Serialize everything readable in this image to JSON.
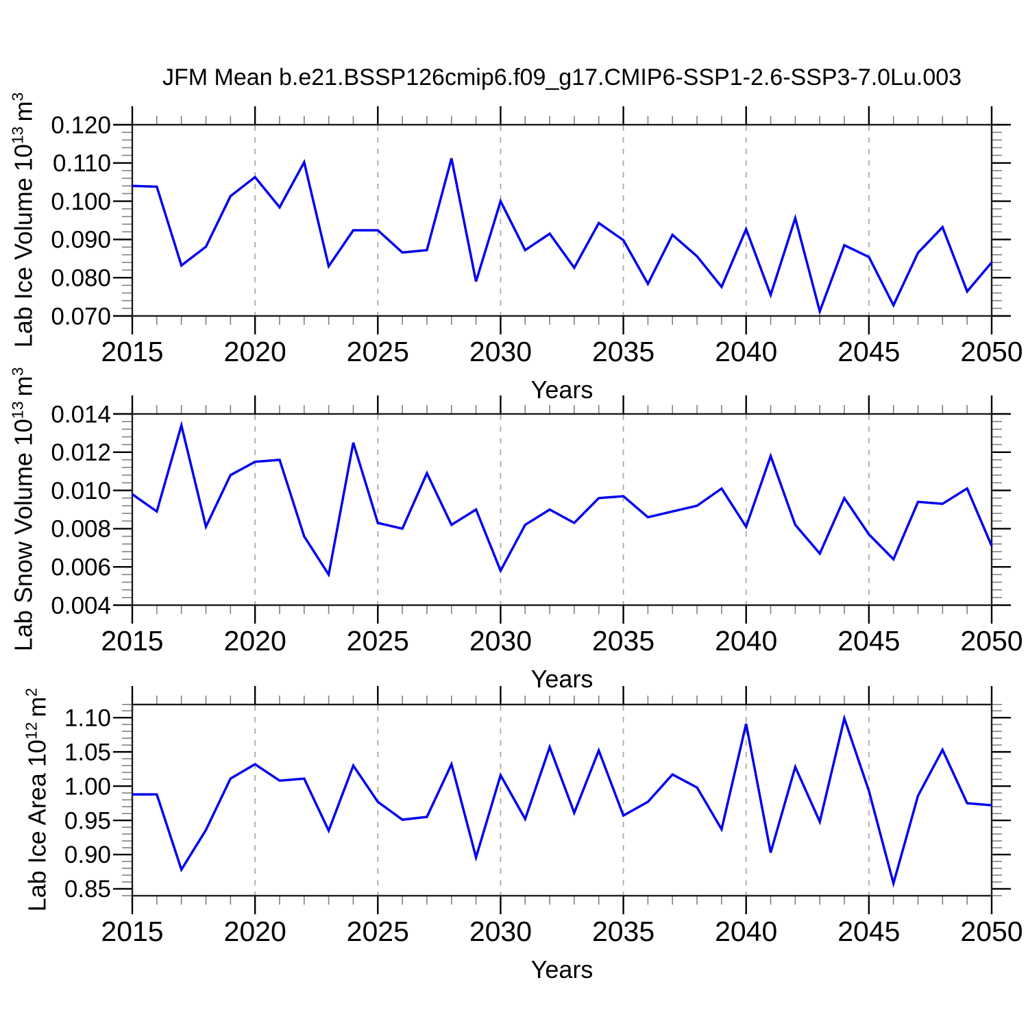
{
  "title": "JFM Mean b.e21.BSSP126cmip6.f09_g17.CMIP6-SSP1-2.6-SSP3-7.0Lu.003",
  "colors": {
    "line": "#0000EE",
    "frame": "#1a1a1a",
    "grid": "#a9a9a9",
    "minor_tick": "#808080",
    "major_tick": "#000000"
  },
  "chart_data": [
    {
      "type": "line",
      "name": "lab-ice-volume",
      "xlabel": "Years",
      "ylabel": {
        "text": "Lab Ice Volume",
        "power": "10",
        "power_exp": "13",
        "unit": "m",
        "unit_exp": "3"
      },
      "xlim": [
        2015,
        2050
      ],
      "ylim": [
        0.07,
        0.12
      ],
      "yticks": [
        {
          "v": 0.07,
          "label": "0.070"
        },
        {
          "v": 0.08,
          "label": "0.080"
        },
        {
          "v": 0.09,
          "label": "0.090"
        },
        {
          "v": 0.1,
          "label": "0.100"
        },
        {
          "v": 0.11,
          "label": "0.110"
        },
        {
          "v": 0.12,
          "label": "0.120"
        }
      ],
      "ytick_minor_step": 0.002,
      "xticks": [
        2015,
        2020,
        2025,
        2030,
        2035,
        2040,
        2045,
        2050
      ],
      "xtick_minor_step": 1,
      "grid_years": [
        2020,
        2025,
        2030,
        2035,
        2040,
        2045
      ],
      "x": [
        2015,
        2016,
        2017,
        2018,
        2019,
        2020,
        2021,
        2022,
        2023,
        2024,
        2025,
        2026,
        2027,
        2028,
        2029,
        2030,
        2031,
        2032,
        2033,
        2034,
        2035,
        2036,
        2037,
        2038,
        2039,
        2040,
        2041,
        2042,
        2043,
        2044,
        2045,
        2046,
        2047,
        2048,
        2049,
        2050
      ],
      "values": [
        0.104,
        0.1038,
        0.0832,
        0.0881,
        0.1013,
        0.1063,
        0.0984,
        0.1102,
        0.083,
        0.0924,
        0.0924,
        0.0866,
        0.0872,
        0.1112,
        0.079,
        0.1,
        0.0872,
        0.0915,
        0.0826,
        0.0943,
        0.0898,
        0.0784,
        0.0912,
        0.0856,
        0.0776,
        0.0927,
        0.0755,
        0.0956,
        0.0712,
        0.0885,
        0.0854,
        0.0728,
        0.0865,
        0.0932,
        0.0764,
        0.084
      ]
    },
    {
      "type": "line",
      "name": "lab-snow-volume",
      "xlabel": "Years",
      "ylabel": {
        "text": "Lab Snow Volume",
        "power": "10",
        "power_exp": "13",
        "unit": "m",
        "unit_exp": "3"
      },
      "xlim": [
        2015,
        2050
      ],
      "ylim": [
        0.004,
        0.014
      ],
      "yticks": [
        {
          "v": 0.004,
          "label": "0.004"
        },
        {
          "v": 0.006,
          "label": "0.006"
        },
        {
          "v": 0.008,
          "label": "0.008"
        },
        {
          "v": 0.01,
          "label": "0.010"
        },
        {
          "v": 0.012,
          "label": "0.012"
        },
        {
          "v": 0.014,
          "label": "0.014"
        }
      ],
      "ytick_minor_step": 0.0004,
      "xticks": [
        2015,
        2020,
        2025,
        2030,
        2035,
        2040,
        2045,
        2050
      ],
      "xtick_minor_step": 1,
      "grid_years": [
        2020,
        2025,
        2030,
        2035,
        2040,
        2045
      ],
      "x": [
        2015,
        2016,
        2017,
        2018,
        2019,
        2020,
        2021,
        2022,
        2023,
        2024,
        2025,
        2026,
        2027,
        2028,
        2029,
        2030,
        2031,
        2032,
        2033,
        2034,
        2035,
        2036,
        2037,
        2038,
        2039,
        2040,
        2041,
        2042,
        2043,
        2044,
        2045,
        2046,
        2047,
        2048,
        2049,
        2050
      ],
      "values": [
        0.0098,
        0.0089,
        0.0134,
        0.0081,
        0.0108,
        0.0115,
        0.0116,
        0.0076,
        0.0056,
        0.0125,
        0.0083,
        0.008,
        0.0109,
        0.0082,
        0.009,
        0.0058,
        0.0082,
        0.009,
        0.0083,
        0.0096,
        0.0097,
        0.0086,
        0.0089,
        0.0092,
        0.0101,
        0.0081,
        0.0118,
        0.0082,
        0.0067,
        0.0096,
        0.0077,
        0.0064,
        0.0094,
        0.0093,
        0.0101,
        0.0071
      ]
    },
    {
      "type": "line",
      "name": "lab-ice-area",
      "xlabel": "Years",
      "ylabel": {
        "text": "Lab Ice Area",
        "power": "10",
        "power_exp": "12",
        "unit": "m",
        "unit_exp": "2"
      },
      "xlim": [
        2015,
        2050
      ],
      "ylim": [
        0.8399,
        1.1192
      ],
      "yticks": [
        {
          "v": 0.85,
          "label": "0.85"
        },
        {
          "v": 0.9,
          "label": "0.90"
        },
        {
          "v": 0.95,
          "label": "0.95"
        },
        {
          "v": 1.0,
          "label": "1.00"
        },
        {
          "v": 1.05,
          "label": "1.05"
        },
        {
          "v": 1.1,
          "label": "1.10"
        }
      ],
      "ytick_minor_step": 0.01,
      "xticks": [
        2015,
        2020,
        2025,
        2030,
        2035,
        2040,
        2045,
        2050
      ],
      "xtick_minor_step": 1,
      "grid_years": [
        2020,
        2025,
        2030,
        2035,
        2040,
        2045
      ],
      "x": [
        2015,
        2016,
        2017,
        2018,
        2019,
        2020,
        2021,
        2022,
        2023,
        2024,
        2025,
        2026,
        2027,
        2028,
        2029,
        2030,
        2031,
        2032,
        2033,
        2034,
        2035,
        2036,
        2037,
        2038,
        2039,
        2040,
        2041,
        2042,
        2043,
        2044,
        2045,
        2046,
        2047,
        2048,
        2049,
        2050
      ],
      "values": [
        0.988,
        0.988,
        0.878,
        0.936,
        1.011,
        1.032,
        1.008,
        1.011,
        0.935,
        1.03,
        0.977,
        0.951,
        0.955,
        1.032,
        0.896,
        1.016,
        0.952,
        1.057,
        0.961,
        1.052,
        0.957,
        0.977,
        1.017,
        0.998,
        0.937,
        1.091,
        0.903,
        1.028,
        0.948,
        1.099,
        0.993,
        0.858,
        0.986,
        1.053,
        0.975,
        0.972
      ]
    }
  ]
}
